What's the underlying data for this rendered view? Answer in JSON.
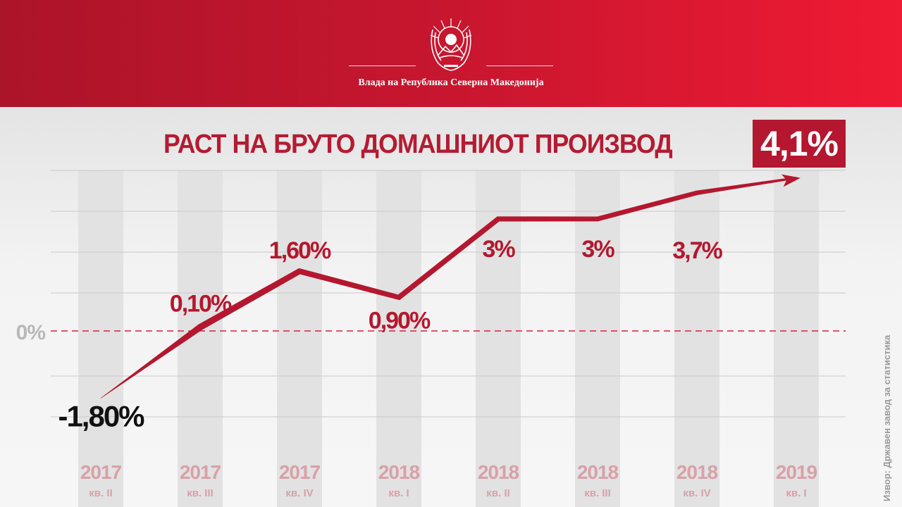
{
  "header": {
    "government_name": "Влада на Република Северна Македонија",
    "emblem_icon": "north-macedonia-coat-of-arms-icon",
    "background_left": "#ac1429",
    "background_right": "#ef1a33"
  },
  "headline": {
    "title": "РАСТ НА БРУТО ДОМАШНИОТ ПРОИЗВОД",
    "badge": "4,1%"
  },
  "source": "Извор: Државен завод за статистика",
  "colors": {
    "accent": "#b4172f",
    "negative_label": "#111111",
    "axis_label": "#d9a0a8",
    "zero_line": "#d4213a"
  },
  "chart_data": {
    "type": "line",
    "title": "РАСТ НА БРУТО ДОМАШНИОТ ПРОИЗВОД",
    "zero_label": "0%",
    "categories": [
      {
        "year": "2017",
        "quarter": "кв. II"
      },
      {
        "year": "2017",
        "quarter": "кв. III"
      },
      {
        "year": "2017",
        "quarter": "кв. IV"
      },
      {
        "year": "2018",
        "quarter": "кв. I"
      },
      {
        "year": "2018",
        "quarter": "кв. II"
      },
      {
        "year": "2018",
        "quarter": "кв. III"
      },
      {
        "year": "2018",
        "quarter": "кв. IV"
      },
      {
        "year": "2019",
        "quarter": "кв. I"
      }
    ],
    "values": [
      -1.8,
      0.1,
      1.6,
      0.9,
      3.0,
      3.0,
      3.7,
      4.1
    ],
    "value_labels": [
      "-1,80%",
      "0,10%",
      "1,60%",
      "0,90%",
      "3%",
      "3%",
      "3,7%",
      ""
    ],
    "ylim": [
      -2.3,
      4.3
    ],
    "grid": true,
    "legend": "none"
  }
}
